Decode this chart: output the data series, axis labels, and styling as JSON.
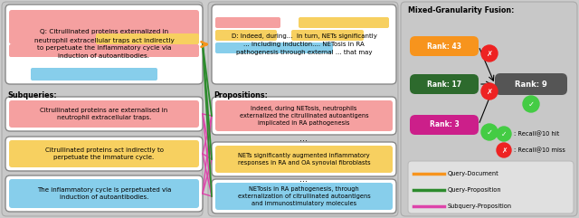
{
  "bg_color": "#cccccc",
  "panel_colors": [
    "#c8c8c8",
    "#c8c8c8",
    "#c8c8c8"
  ],
  "query_text": "Q: Citrullinated proteins externalized in\nneutrophil extracellular traps act indirectly\nto perpetuate the inflammatory cycle via\ninduction of autoantibodies.",
  "doc_text": "D: Indeed, during...  In turn, NETs significantly\n... including induction.... NETosis in RA\npathogenesis through external ... that may",
  "subqueries_label": "Subqueries:",
  "subq_texts": [
    "Citrullinated proteins are externalised in\nneutrophil extracellular traps.",
    "Citrullinated proteins act indirectly to\nperpetuate the immature cycle.",
    "The inflammatory cycle is perpetuated via\ninduction of autoantibodies."
  ],
  "subq_colors": [
    "#f5a0a0",
    "#f7d060",
    "#87ceeb"
  ],
  "prop_label": "Propositions:",
  "prop_texts": [
    "Indeed, during NETosis, neutrophils\nexternalized the citrullinated autoantigens\nimplicated in RA pathogenesis",
    "NETs significantly augmented inflammatory\nresponses in RA and OA synovial fibroblasts",
    "NETosis in RA pathogenesis, through\nexternalization of citrullinated autoantigens\nand immunostimulatory molecules"
  ],
  "prop_colors": [
    "#f5a0a0",
    "#f7d060",
    "#87ceeb"
  ],
  "fusion_title": "Mixed-Granularity Fusion:",
  "rank_labels": [
    "Rank: 43",
    "Rank: 17",
    "Rank: 3"
  ],
  "rank_colors": [
    "#f7941d",
    "#2d6a2d",
    "#cc1f8a"
  ],
  "rank_hit": [
    false,
    false,
    true
  ],
  "fused_label": "Rank: 9",
  "fused_color": "#555555",
  "fused_hit": true,
  "recall_hit_label": ": Recall@10 hit",
  "recall_miss_label": ": Recall@10 miss",
  "legend_items": [
    {
      "label": "Query-Document",
      "color": "#f7941d"
    },
    {
      "label": "Query-Proposition",
      "color": "#2d8b2d"
    },
    {
      "label": "Subquery-Proposition",
      "color": "#dd44aa"
    }
  ],
  "orange_line_color": "#f7941d",
  "green_line_color": "#2d8b2d",
  "magenta_line_color": "#dd44aa",
  "hit_color": "#44cc44",
  "miss_color": "#ee2222"
}
